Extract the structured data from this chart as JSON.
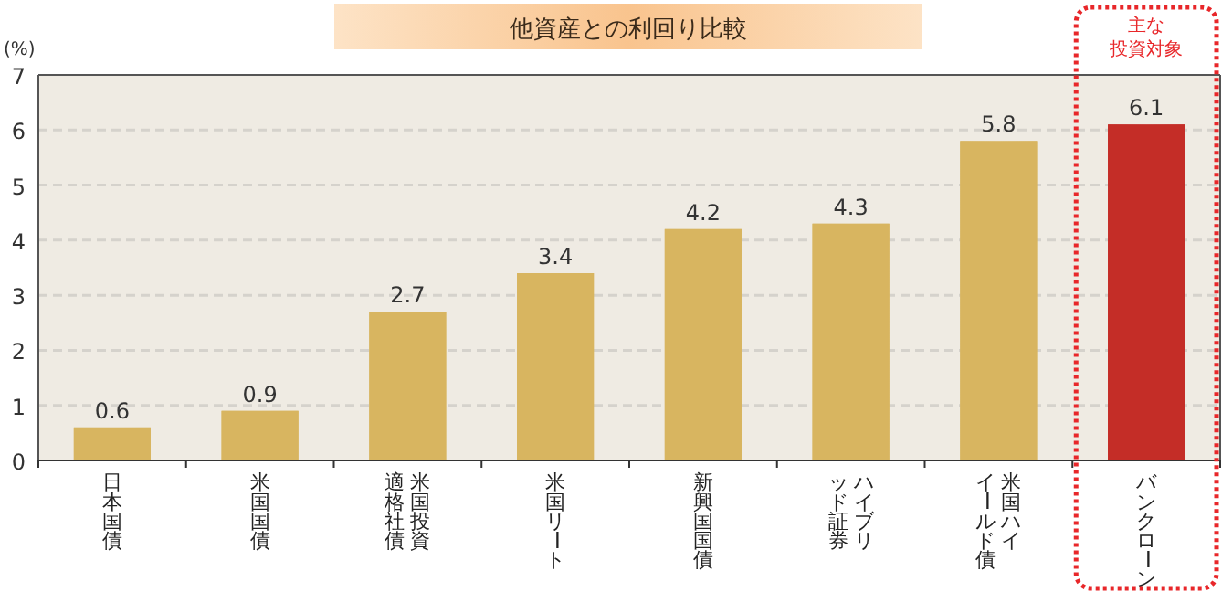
{
  "chart_data": {
    "type": "bar",
    "title": "他資産との利回り比較",
    "ylabel": "(%)",
    "categories": [
      "日本国債",
      "米国国債",
      "米国投資適格社債",
      "米国リート",
      "新興国国債",
      "ハイブリッド証券",
      "米国ハイイールド債",
      "バンクローン"
    ],
    "values": [
      0.6,
      0.9,
      2.7,
      3.4,
      4.2,
      4.3,
      5.8,
      6.1
    ],
    "colors": [
      "#d8b560",
      "#d8b560",
      "#d8b560",
      "#d8b560",
      "#d8b560",
      "#d8b560",
      "#d8b560",
      "#c42d27"
    ],
    "ylim": [
      0,
      7
    ],
    "yticks": [
      0,
      1,
      2,
      3,
      4,
      5,
      6,
      7
    ],
    "grid": "y",
    "data_labels": true,
    "annotations": [
      "主な",
      "投資対象"
    ]
  }
}
